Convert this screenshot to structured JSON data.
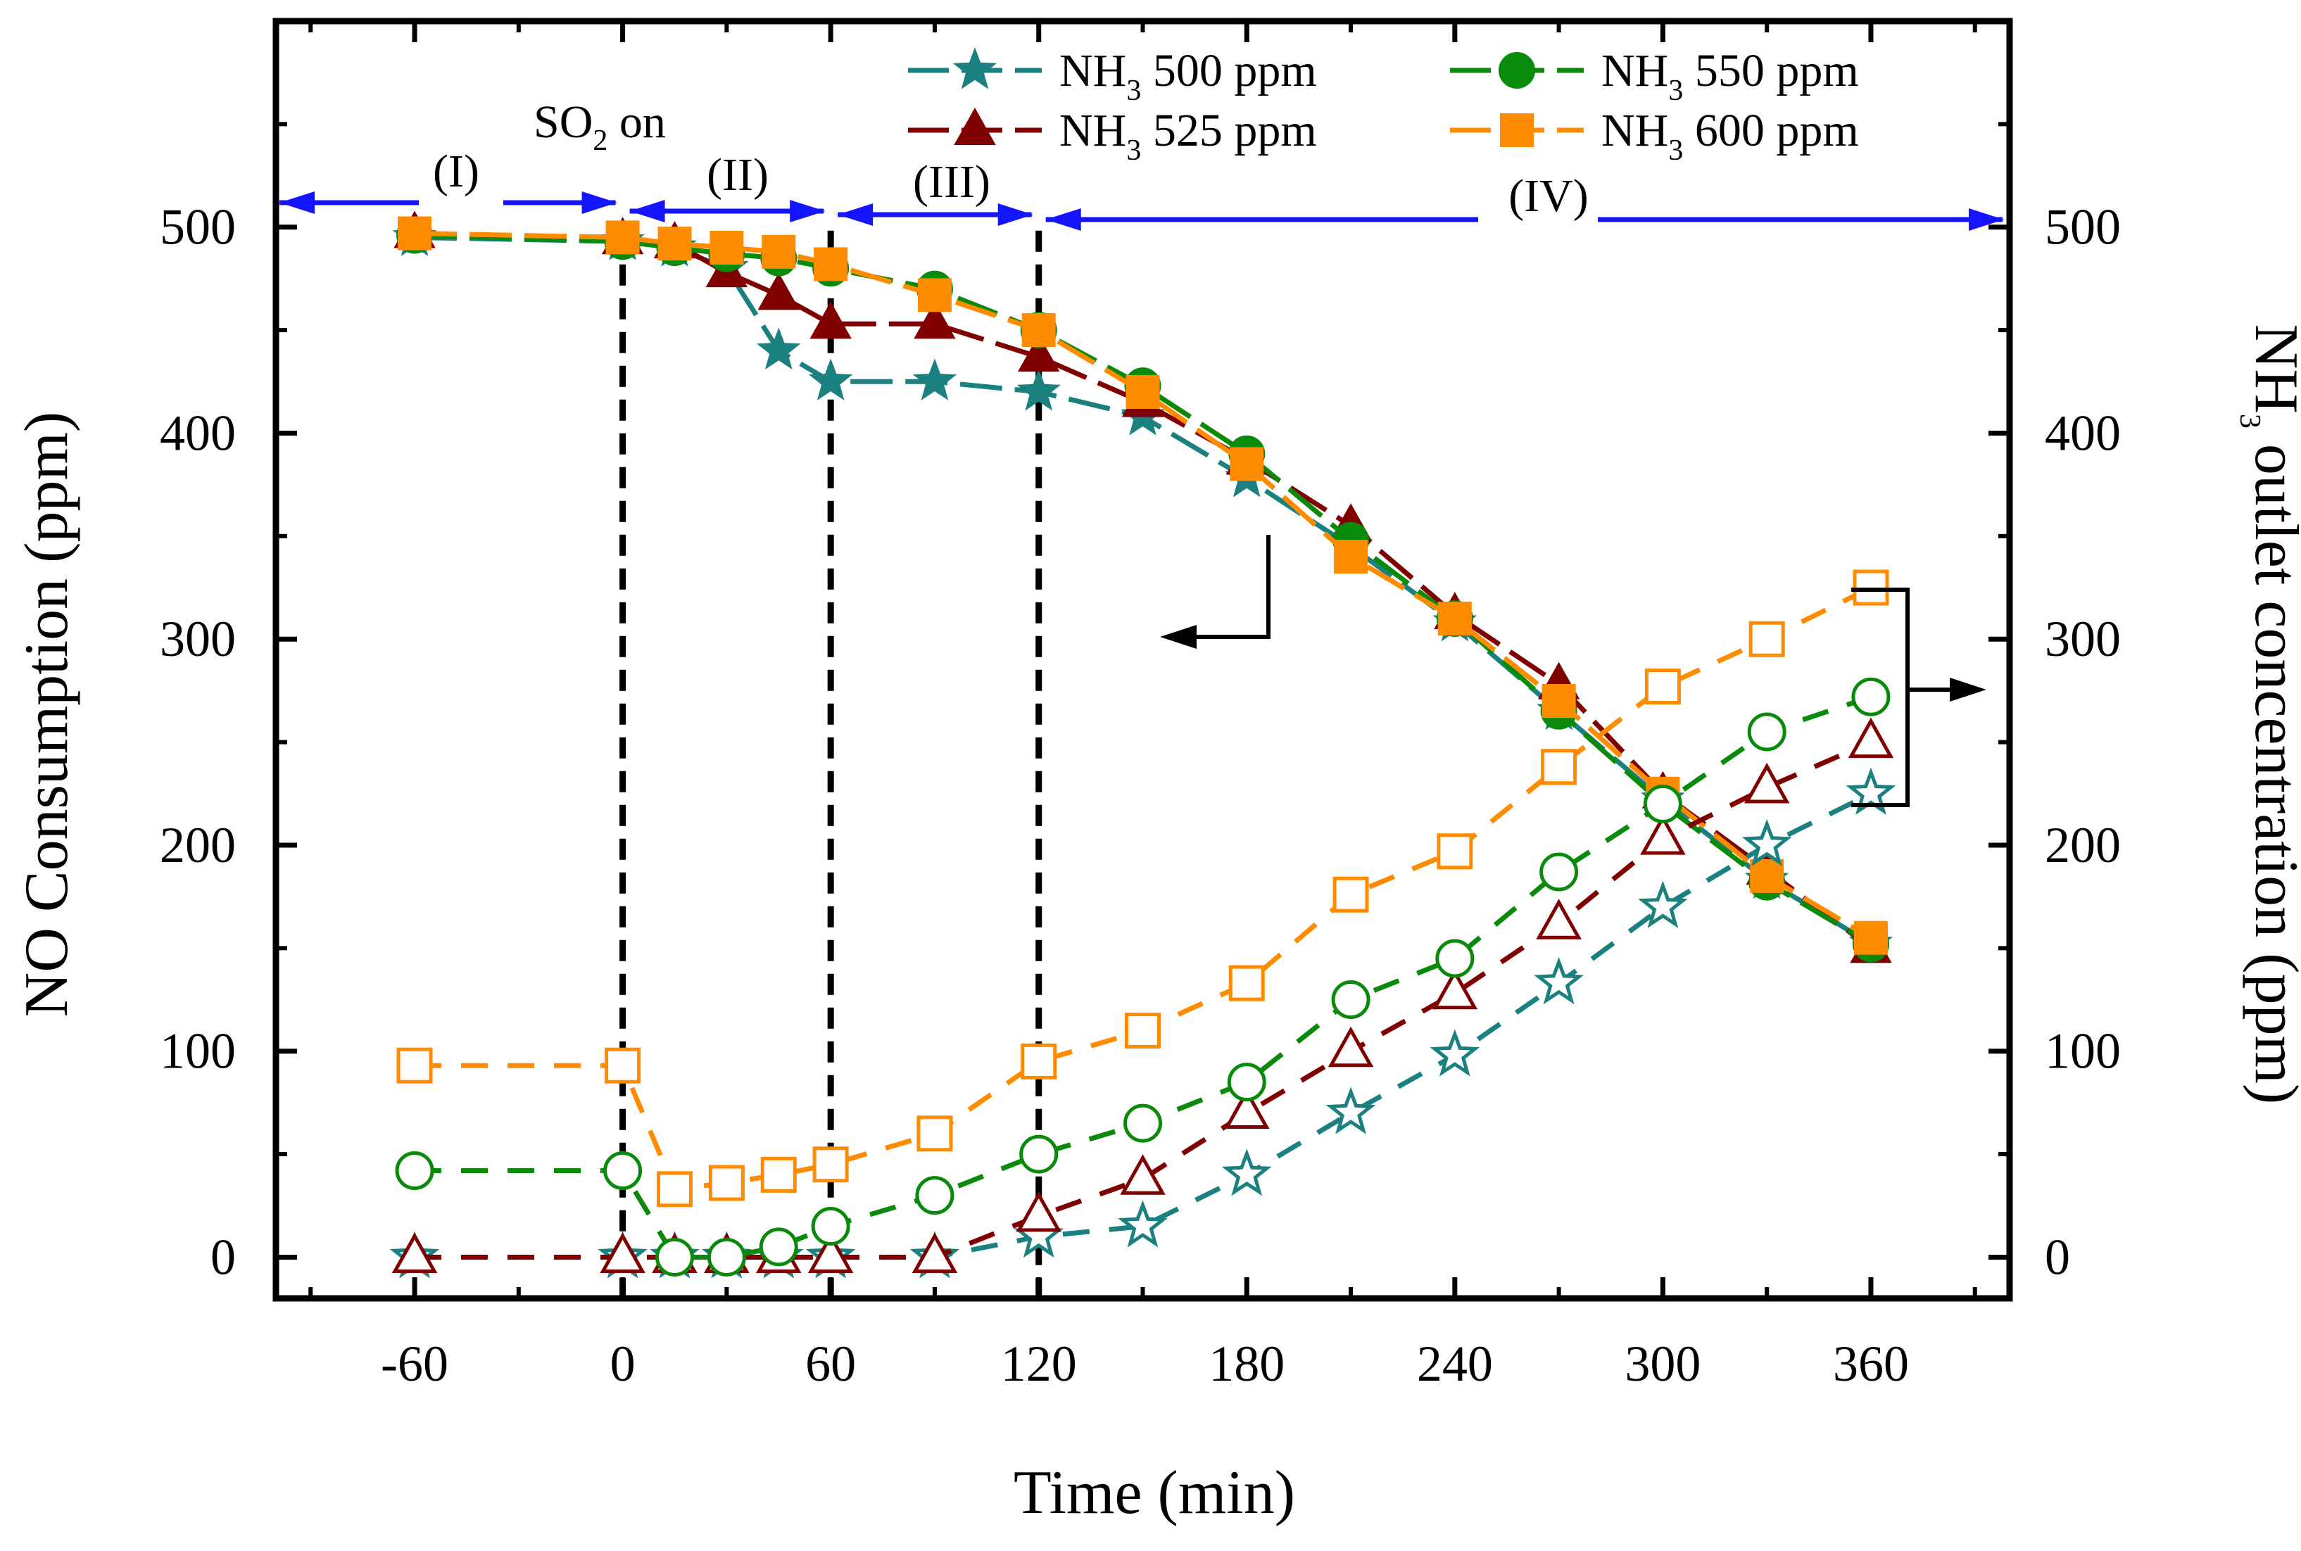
{
  "chart_data": {
    "type": "line",
    "xlabel": "Time (min)",
    "ylabel_left": "NO Consumption (ppm)",
    "ylabel_right": {
      "prefix": "NH",
      "sub": "3",
      "suffix": " outlet concentration (ppm)"
    },
    "xlim": [
      -100,
      400
    ],
    "ylim": [
      -20,
      600
    ],
    "x_ticks": [
      -60,
      0,
      60,
      120,
      180,
      240,
      300,
      360
    ],
    "x_tick_labels": [
      "-60",
      "0",
      "60",
      "120",
      "180",
      "240",
      "300",
      "360"
    ],
    "y_ticks": [
      0,
      100,
      200,
      300,
      400,
      500
    ],
    "y_tick_labels": [
      "0",
      "100",
      "200",
      "300",
      "400",
      "500"
    ],
    "y_ticks_right": [
      0,
      100,
      200,
      300,
      400,
      500
    ],
    "y_tick_labels_right": [
      "0",
      "100",
      "200",
      "300",
      "400",
      "500"
    ],
    "colors": {
      "teal": "#1a8080",
      "darkred": "#800000",
      "green": "#0a8a0a",
      "orange": "#ff8c00",
      "blue": "#1414ff"
    },
    "legend": [
      {
        "prefix": "NH",
        "sub": "3",
        "suffix": " 500 ppm",
        "marker": "star",
        "color": "#1a8080"
      },
      {
        "prefix": "NH",
        "sub": "3",
        "suffix": " 525 ppm",
        "marker": "triangle",
        "color": "#800000"
      },
      {
        "prefix": "NH",
        "sub": "3",
        "suffix": " 550 ppm",
        "marker": "circle",
        "color": "#0a8a0a"
      },
      {
        "prefix": "NH",
        "sub": "3",
        "suffix": " 600 ppm",
        "marker": "square",
        "color": "#ff8c00"
      }
    ],
    "annotations": {
      "so2": {
        "prefix": "SO",
        "sub": "2",
        "suffix": " on"
      },
      "phases": [
        {
          "label": "(I)",
          "from": -100,
          "to": 0
        },
        {
          "label": "(II)",
          "from": 0,
          "to": 60
        },
        {
          "label": "(III)",
          "from": 60,
          "to": 120
        },
        {
          "label": "(IV)",
          "from": 120,
          "to": 400
        }
      ],
      "phase_boundaries": [
        0,
        60,
        120
      ]
    },
    "series": [
      {
        "name": "NH3 500 ppm NO consumption",
        "axis": "left",
        "marker": "star",
        "filled": true,
        "color": "#1a8080",
        "x": [
          -60,
          0,
          15,
          30,
          45,
          60,
          90,
          120,
          150,
          180,
          210,
          240,
          270,
          300,
          330,
          360
        ],
        "y": [
          495,
          493,
          490,
          480,
          440,
          425,
          425,
          420,
          408,
          378,
          345,
          308,
          265,
          222,
          183,
          152
        ]
      },
      {
        "name": "NH3 525 ppm NO consumption",
        "axis": "left",
        "marker": "triangle",
        "filled": true,
        "color": "#800000",
        "x": [
          -60,
          0,
          15,
          30,
          45,
          60,
          90,
          120,
          150,
          180,
          210,
          240,
          270,
          300,
          330,
          360
        ],
        "y": [
          497,
          494,
          492,
          478,
          467,
          453,
          453,
          437,
          415,
          387,
          355,
          312,
          278,
          225,
          188,
          150
        ]
      },
      {
        "name": "NH3 550 ppm NO consumption",
        "axis": "left",
        "marker": "circle",
        "filled": true,
        "color": "#0a8a0a",
        "x": [
          -60,
          0,
          15,
          30,
          45,
          60,
          90,
          120,
          150,
          180,
          210,
          240,
          270,
          300,
          330,
          360
        ],
        "y": [
          496,
          493,
          490,
          487,
          485,
          480,
          470,
          450,
          423,
          390,
          348,
          310,
          265,
          220,
          182,
          152
        ]
      },
      {
        "name": "NH3 600 ppm NO consumption",
        "axis": "left",
        "marker": "square",
        "filled": true,
        "color": "#ff8c00",
        "x": [
          -60,
          0,
          15,
          30,
          45,
          60,
          90,
          120,
          150,
          180,
          210,
          240,
          270,
          300,
          330,
          360
        ],
        "y": [
          497,
          495,
          492,
          490,
          488,
          482,
          467,
          450,
          420,
          385,
          340,
          310,
          270,
          225,
          185,
          155
        ]
      },
      {
        "name": "NH3 500 ppm NH3 outlet",
        "axis": "right",
        "marker": "star",
        "filled": false,
        "color": "#1a8080",
        "x": [
          -60,
          0,
          15,
          30,
          45,
          60,
          90,
          120,
          150,
          180,
          210,
          240,
          270,
          300,
          330,
          360
        ],
        "y": [
          0,
          0,
          0,
          0,
          0,
          0,
          0,
          10,
          15,
          40,
          70,
          98,
          133,
          170,
          200,
          225
        ]
      },
      {
        "name": "NH3 525 ppm NH3 outlet",
        "axis": "right",
        "marker": "triangle",
        "filled": false,
        "color": "#800000",
        "x": [
          -60,
          0,
          15,
          30,
          45,
          60,
          90,
          120,
          150,
          180,
          210,
          240,
          270,
          300,
          330,
          360
        ],
        "y": [
          0,
          0,
          0,
          0,
          0,
          0,
          0,
          20,
          38,
          70,
          100,
          128,
          162,
          203,
          228,
          250
        ]
      },
      {
        "name": "NH3 550 ppm NH3 outlet",
        "axis": "right",
        "marker": "circle",
        "filled": false,
        "color": "#0a8a0a",
        "x": [
          -60,
          0,
          15,
          30,
          45,
          60,
          90,
          120,
          150,
          180,
          210,
          240,
          270,
          300,
          330,
          360
        ],
        "y": [
          42,
          42,
          0,
          0,
          5,
          15,
          30,
          50,
          65,
          85,
          125,
          145,
          187,
          220,
          255,
          272
        ]
      },
      {
        "name": "NH3 600 ppm NH3 outlet",
        "axis": "right",
        "marker": "square",
        "filled": false,
        "color": "#ff8c00",
        "x": [
          -60,
          0,
          15,
          30,
          45,
          60,
          90,
          120,
          150,
          180,
          210,
          240,
          270,
          300,
          330,
          360
        ],
        "y": [
          93,
          93,
          33,
          36,
          40,
          45,
          60,
          95,
          110,
          133,
          176,
          197,
          238,
          277,
          300,
          325
        ]
      }
    ]
  }
}
